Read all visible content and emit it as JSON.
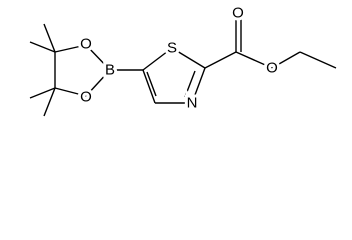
{
  "atoms": {
    "labels": [
      "O",
      "O",
      "B",
      "S",
      "N",
      "O",
      "O"
    ]
  }
}
